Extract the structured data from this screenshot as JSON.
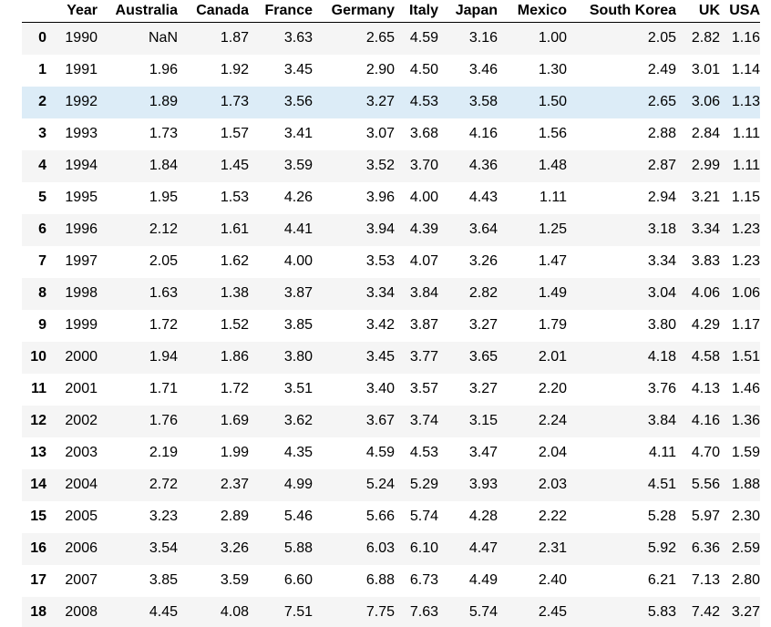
{
  "table": {
    "columns": [
      "Year",
      "Australia",
      "Canada",
      "France",
      "Germany",
      "Italy",
      "Japan",
      "Mexico",
      "South Korea",
      "UK",
      "USA"
    ],
    "highlighted_row": 2,
    "rows": [
      {
        "index": "0",
        "cells": [
          "1990",
          "NaN",
          "1.87",
          "3.63",
          "2.65",
          "4.59",
          "3.16",
          "1.00",
          "2.05",
          "2.82",
          "1.16"
        ]
      },
      {
        "index": "1",
        "cells": [
          "1991",
          "1.96",
          "1.92",
          "3.45",
          "2.90",
          "4.50",
          "3.46",
          "1.30",
          "2.49",
          "3.01",
          "1.14"
        ]
      },
      {
        "index": "2",
        "cells": [
          "1992",
          "1.89",
          "1.73",
          "3.56",
          "3.27",
          "4.53",
          "3.58",
          "1.50",
          "2.65",
          "3.06",
          "1.13"
        ]
      },
      {
        "index": "3",
        "cells": [
          "1993",
          "1.73",
          "1.57",
          "3.41",
          "3.07",
          "3.68",
          "4.16",
          "1.56",
          "2.88",
          "2.84",
          "1.11"
        ]
      },
      {
        "index": "4",
        "cells": [
          "1994",
          "1.84",
          "1.45",
          "3.59",
          "3.52",
          "3.70",
          "4.36",
          "1.48",
          "2.87",
          "2.99",
          "1.11"
        ]
      },
      {
        "index": "5",
        "cells": [
          "1995",
          "1.95",
          "1.53",
          "4.26",
          "3.96",
          "4.00",
          "4.43",
          "1.11",
          "2.94",
          "3.21",
          "1.15"
        ]
      },
      {
        "index": "6",
        "cells": [
          "1996",
          "2.12",
          "1.61",
          "4.41",
          "3.94",
          "4.39",
          "3.64",
          "1.25",
          "3.18",
          "3.34",
          "1.23"
        ]
      },
      {
        "index": "7",
        "cells": [
          "1997",
          "2.05",
          "1.62",
          "4.00",
          "3.53",
          "4.07",
          "3.26",
          "1.47",
          "3.34",
          "3.83",
          "1.23"
        ]
      },
      {
        "index": "8",
        "cells": [
          "1998",
          "1.63",
          "1.38",
          "3.87",
          "3.34",
          "3.84",
          "2.82",
          "1.49",
          "3.04",
          "4.06",
          "1.06"
        ]
      },
      {
        "index": "9",
        "cells": [
          "1999",
          "1.72",
          "1.52",
          "3.85",
          "3.42",
          "3.87",
          "3.27",
          "1.79",
          "3.80",
          "4.29",
          "1.17"
        ]
      },
      {
        "index": "10",
        "cells": [
          "2000",
          "1.94",
          "1.86",
          "3.80",
          "3.45",
          "3.77",
          "3.65",
          "2.01",
          "4.18",
          "4.58",
          "1.51"
        ]
      },
      {
        "index": "11",
        "cells": [
          "2001",
          "1.71",
          "1.72",
          "3.51",
          "3.40",
          "3.57",
          "3.27",
          "2.20",
          "3.76",
          "4.13",
          "1.46"
        ]
      },
      {
        "index": "12",
        "cells": [
          "2002",
          "1.76",
          "1.69",
          "3.62",
          "3.67",
          "3.74",
          "3.15",
          "2.24",
          "3.84",
          "4.16",
          "1.36"
        ]
      },
      {
        "index": "13",
        "cells": [
          "2003",
          "2.19",
          "1.99",
          "4.35",
          "4.59",
          "4.53",
          "3.47",
          "2.04",
          "4.11",
          "4.70",
          "1.59"
        ]
      },
      {
        "index": "14",
        "cells": [
          "2004",
          "2.72",
          "2.37",
          "4.99",
          "5.24",
          "5.29",
          "3.93",
          "2.03",
          "4.51",
          "5.56",
          "1.88"
        ]
      },
      {
        "index": "15",
        "cells": [
          "2005",
          "3.23",
          "2.89",
          "5.46",
          "5.66",
          "5.74",
          "4.28",
          "2.22",
          "5.28",
          "5.97",
          "2.30"
        ]
      },
      {
        "index": "16",
        "cells": [
          "2006",
          "3.54",
          "3.26",
          "5.88",
          "6.03",
          "6.10",
          "4.47",
          "2.31",
          "5.92",
          "6.36",
          "2.59"
        ]
      },
      {
        "index": "17",
        "cells": [
          "2007",
          "3.85",
          "3.59",
          "6.60",
          "6.88",
          "6.73",
          "4.49",
          "2.40",
          "6.21",
          "7.13",
          "2.80"
        ]
      },
      {
        "index": "18",
        "cells": [
          "2008",
          "4.45",
          "4.08",
          "7.51",
          "7.75",
          "7.63",
          "5.74",
          "2.45",
          "5.83",
          "7.42",
          "3.27"
        ]
      }
    ]
  },
  "colors": {
    "row_stripe": "#f5f5f5",
    "row_hover": "#dcecf7",
    "header_rule": "#000000"
  }
}
